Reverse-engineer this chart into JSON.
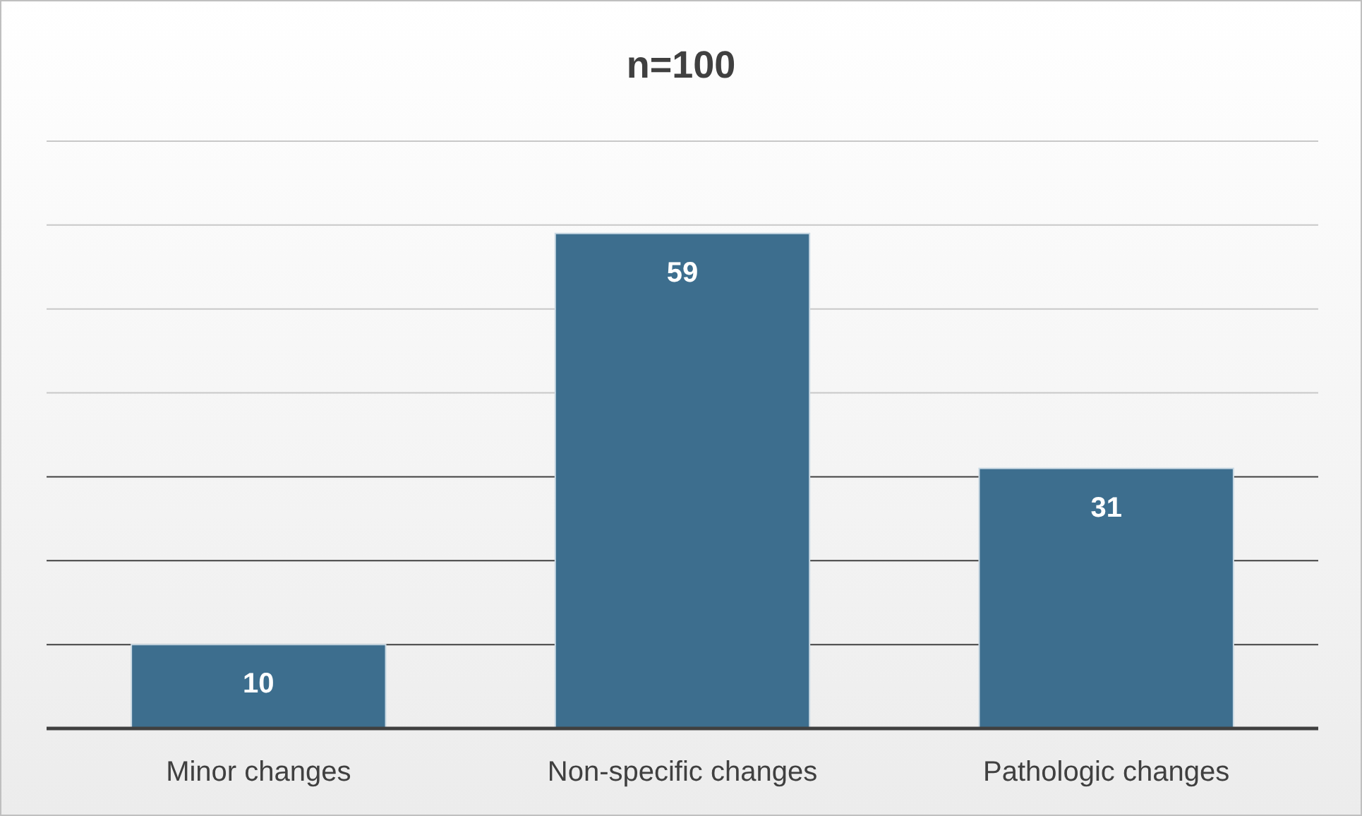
{
  "chart_data": {
    "type": "bar",
    "title": "n=100",
    "categories": [
      "Minor changes",
      "Non-specific changes",
      "Pathologic changes"
    ],
    "values": [
      10,
      59,
      31
    ],
    "color": "#3d6e8e",
    "ylim": [
      0,
      70
    ],
    "yticks": [
      {
        "value": 0,
        "label": null
      },
      {
        "value": 10,
        "label": null
      },
      {
        "value": 20,
        "label": null
      },
      {
        "value": 30,
        "label": null
      },
      {
        "value": 40,
        "label": null
      },
      {
        "value": 50,
        "label": null
      },
      {
        "value": 60,
        "label": null
      },
      {
        "value": 70,
        "label": null
      }
    ],
    "grid": "y",
    "tick_labels": "x",
    "data_labels": true
  }
}
